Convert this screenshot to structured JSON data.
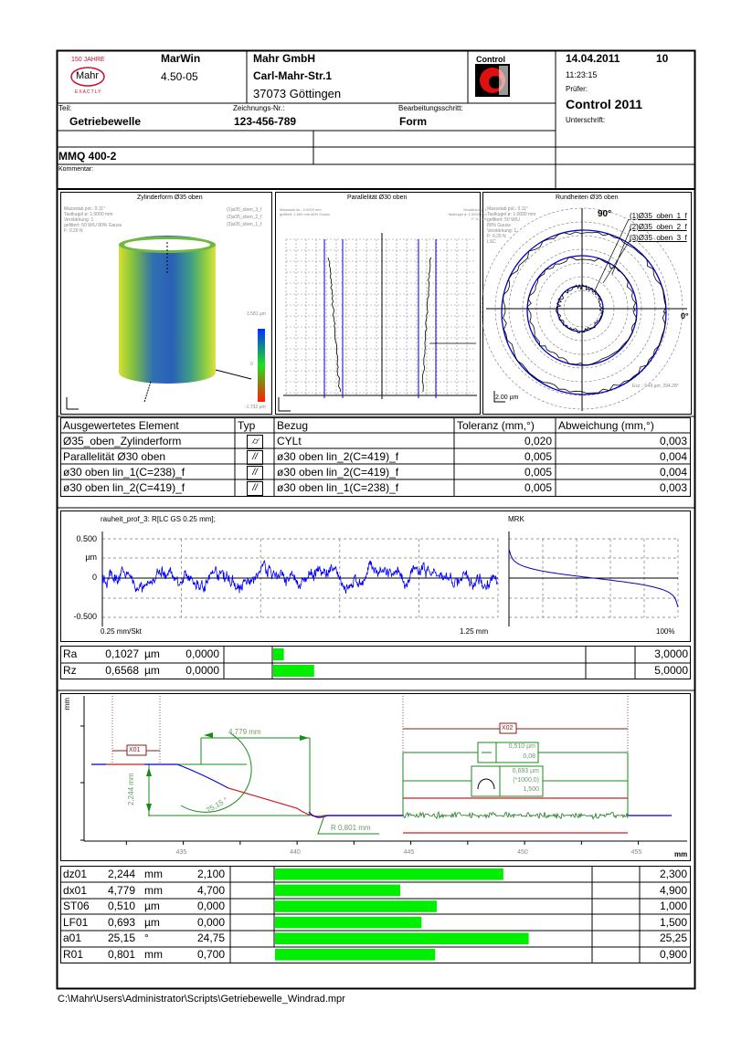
{
  "header": {
    "logo": {
      "line1": "150 JAHRE",
      "name": "Mahr",
      "line3": "EXACTLY"
    },
    "software": "MarWin",
    "version": "4.50-05",
    "company": "Mahr GmbH",
    "street": "Carl-Mahr-Str.1",
    "city": "37073 Göttingen",
    "control_logo": "Control",
    "date": "14.04.2011",
    "page": "10",
    "time": "11:23:15",
    "pruefer_label": "Prüfer:",
    "pruefer": "Control 2011",
    "unterschrift_label": "Unterschrift:",
    "teil_label": "Teil:",
    "teil": "Getriebewelle",
    "zeichnung_label": "Zeichnungs-Nr.:",
    "zeichnung": "123-456-789",
    "bearb_label": "Bearbeitungsschritt:",
    "bearb": "Form",
    "machine": "MMQ 400-2",
    "kommentar_label": "Kommentar:"
  },
  "graphics": {
    "cylinder": {
      "title": "Zylinderform Ø35 oben",
      "info": [
        "Massstab pol.: 0.11°",
        "Tastkugel ø: 1.0000 mm",
        "Verstärkung: 1",
        "gefiltert: 50 W/U 80% Gauss",
        "F: 0.20 N"
      ],
      "legend": [
        "(1)ø35_oben_3_f",
        "(2)ø35_oben_2_f",
        "(3)ø35_oben_1_f"
      ],
      "scale_max": "1.581 µm",
      "scale_zero": "0",
      "scale_min": "-1.732 µm"
    },
    "parallel": {
      "title": "Parallelität Ø30 oben",
      "info": [
        "Massstab lin.: 0.0200 mm",
        "gefiltert: 1.800 mm 80% Gauss"
      ],
      "info_right": [
        "Verstärkung: 1",
        "Tastkugel ø: 1.0000 mm",
        "F: 0.20 N"
      ]
    },
    "roundness": {
      "title": "Rundheiten Ø35 oben",
      "info": [
        "Massstab pol.: 0.11°",
        "Tastkugel ø: 1.0000 mm",
        "gefiltert: 50 W/U",
        "80% Gauss",
        "Verstärkung: 1",
        "F: 0.20 N",
        "LSC"
      ],
      "angle_90": "90°",
      "angle_0": "0°",
      "legend": [
        "(1)Ø35_oben_1_f",
        "(2)Ø35_oben_2_f",
        "(3)Ø35_oben_3_f"
      ],
      "scale": "2.00 µm",
      "exz": "Exz.: 7.49 µm, 294.28°"
    }
  },
  "results_table": {
    "headers": [
      "Ausgewertetes Element",
      "Typ",
      "Bezug",
      "Toleranz (mm,°)",
      "Abweichung (mm,°)"
    ],
    "rows": [
      {
        "element": "Ø35_oben_Zylinderform",
        "typ": "cylindricity",
        "typ_glyph": "⌭",
        "bezug": "CYLt",
        "toleranz": "0,020",
        "abweichung": "0,003"
      },
      {
        "element": "Parallelität Ø30 oben",
        "typ": "parallelism",
        "typ_glyph": "//",
        "bezug": "ø30 oben lin_2(C=419)_f",
        "toleranz": "0,005",
        "abweichung": "0,004"
      },
      {
        "element": "ø30 oben lin_1(C=238)_f",
        "typ": "parallelism",
        "typ_glyph": "//",
        "bezug": "ø30 oben lin_2(C=419)_f",
        "toleranz": "0,005",
        "abweichung": "0,004"
      },
      {
        "element": "ø30 oben lin_2(C=419)_f",
        "typ": "parallelism",
        "typ_glyph": "//",
        "bezug": "ø30 oben lin_1(C=238)_f",
        "toleranz": "0,005",
        "abweichung": "0,003"
      }
    ]
  },
  "roughness": {
    "title": "rauheit_prof_3: R[LC GS 0.25 mm];",
    "y_ticks": [
      "0.500",
      "µm",
      "0",
      "-0.500"
    ],
    "ylim": [
      -0.5,
      0.5
    ],
    "x_scale": "0.25 mm/Skt",
    "x_end": "1.25 mm",
    "mrk_title": "MRK",
    "mrk_end": "100%",
    "line_color": "#0000ff"
  },
  "roughness_params": [
    {
      "name": "Ra",
      "value": "0,1027",
      "unit": "µm",
      "lower": "0,0000",
      "upper": "3,0000",
      "fraction": 0.034
    },
    {
      "name": "Rz",
      "value": "0,6568",
      "unit": "µm",
      "lower": "0,0000",
      "upper": "5,0000",
      "fraction": 0.131
    }
  ],
  "contour": {
    "y_unit": "mm",
    "x_unit": "mm",
    "x_ticks": [
      "435",
      "440",
      "445",
      "450",
      "455"
    ],
    "labels": {
      "x01": "X01",
      "x02": "X02",
      "dx": "4,779 mm",
      "dz": "2,244 mm",
      "angle": "25,15 °",
      "radius": "R   0,801 mm",
      "st_value": "0,510 µm",
      "st_cutoff": "0,08",
      "lf_value": "0,693 µm",
      "lf_factor": "(*1000,0)",
      "lf_cutoff": "1,500"
    }
  },
  "contour_params": [
    {
      "name": "dz01",
      "value": "2,244",
      "unit": "mm",
      "lower": "2,100",
      "upper": "2,300",
      "fraction": 0.72
    },
    {
      "name": "dx01",
      "value": "4,779",
      "unit": "mm",
      "lower": "4,700",
      "upper": "4,900",
      "fraction": 0.395
    },
    {
      "name": "ST06",
      "value": "0,510",
      "unit": "µm",
      "lower": "0,000",
      "upper": "1,000",
      "fraction": 0.51
    },
    {
      "name": "LF01",
      "value": "0,693",
      "unit": "µm",
      "lower": "0,000",
      "upper": "1,500",
      "fraction": 0.462
    },
    {
      "name": "a01",
      "value": "25,15",
      "unit": "°",
      "lower": "24,75",
      "upper": "25,25",
      "fraction": 0.8
    },
    {
      "name": "R01",
      "value": "0,801",
      "unit": "mm",
      "lower": "0,700",
      "upper": "0,900",
      "fraction": 0.505
    }
  ],
  "footer": {
    "path": "C:\\Mahr\\Users\\Administrator\\Scripts\\Getriebewelle_Windrad.mpr"
  },
  "colors": {
    "bar": "#00ee00",
    "profile": "#0000cc",
    "dim": "#1a8a1a",
    "ref": "#8b1a1a",
    "red": "#cc2222"
  }
}
